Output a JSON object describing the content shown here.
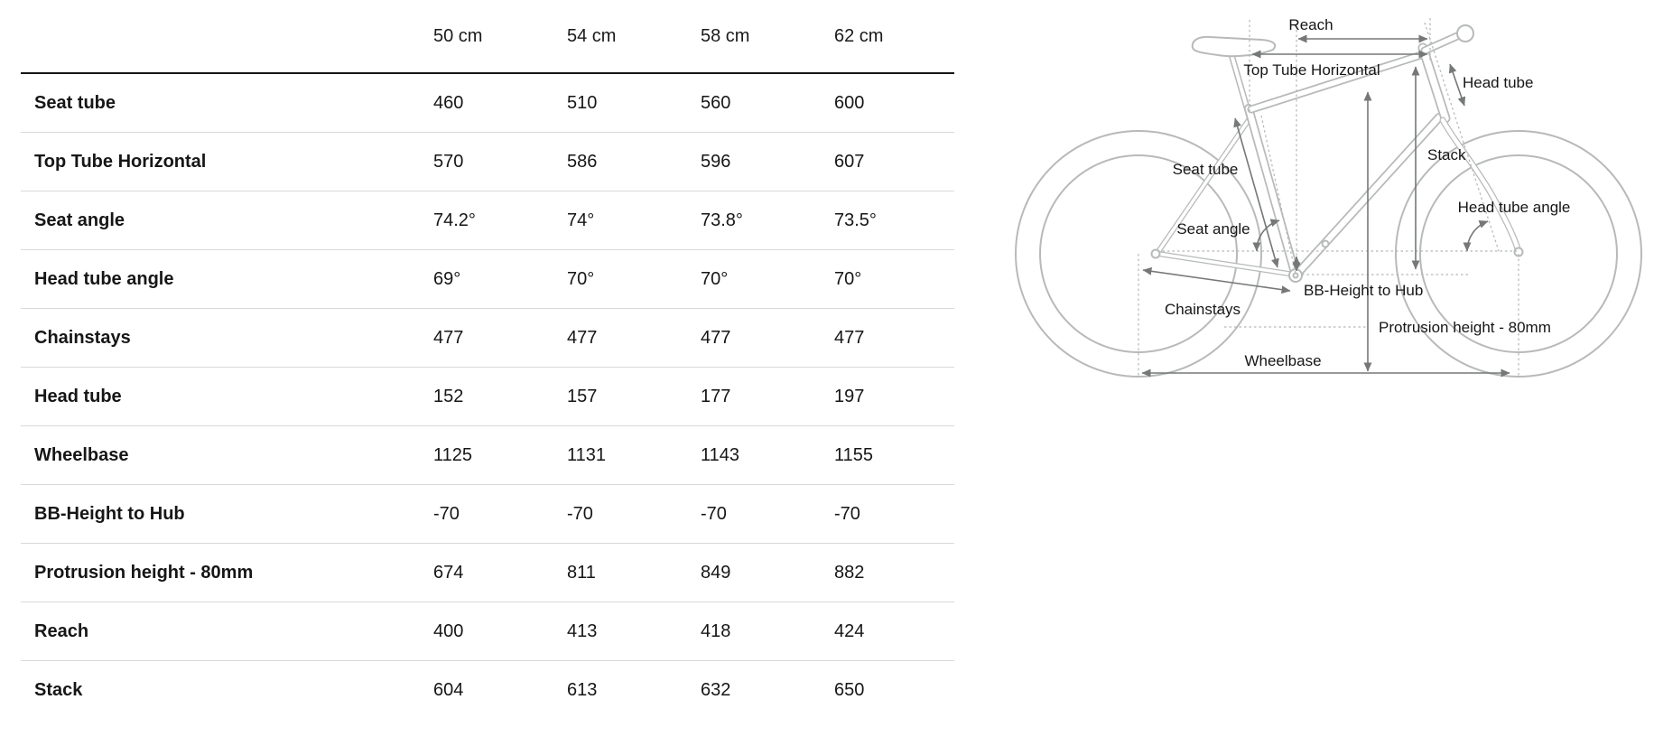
{
  "table": {
    "header": [
      "",
      "50 cm",
      "54 cm",
      "58 cm",
      "62 cm"
    ],
    "rows": [
      {
        "label": "Seat tube",
        "values": [
          "460",
          "510",
          "560",
          "600"
        ]
      },
      {
        "label": "Top Tube Horizontal",
        "values": [
          "570",
          "586",
          "596",
          "607"
        ]
      },
      {
        "label": "Seat angle",
        "values": [
          "74.2°",
          "74°",
          "73.8°",
          "73.5°"
        ]
      },
      {
        "label": "Head tube angle",
        "values": [
          "69°",
          "70°",
          "70°",
          "70°"
        ]
      },
      {
        "label": "Chainstays",
        "values": [
          "477",
          "477",
          "477",
          "477"
        ]
      },
      {
        "label": "Head tube",
        "values": [
          "152",
          "157",
          "177",
          "197"
        ]
      },
      {
        "label": "Wheelbase",
        "values": [
          "1125",
          "1131",
          "1143",
          "1155"
        ]
      },
      {
        "label": "BB-Height to Hub",
        "values": [
          "-70",
          "-70",
          "-70",
          "-70"
        ]
      },
      {
        "label": "Protrusion height - 80mm",
        "values": [
          "674",
          "811",
          "849",
          "882"
        ]
      },
      {
        "label": "Reach",
        "values": [
          "400",
          "413",
          "418",
          "424"
        ]
      },
      {
        "label": "Stack",
        "values": [
          "604",
          "613",
          "632",
          "650"
        ]
      }
    ]
  },
  "diagram": {
    "labels": {
      "reach": "Reach",
      "top_tube_horizontal": "Top Tube Horizontal",
      "head_tube": "Head tube",
      "seat_tube": "Seat tube",
      "stack": "Stack",
      "head_tube_angle": "Head tube angle",
      "seat_angle": "Seat angle",
      "bb_height_to_hub": "BB-Height to Hub",
      "chainstays": "Chainstays",
      "protrusion_height": "Protrusion height - 80mm",
      "wheelbase": "Wheelbase"
    },
    "colors": {
      "frame_outline": "#b7bab9",
      "dimension_arrows": "#757877",
      "construction_dotted": "#b3b6b5",
      "text": "#161616"
    }
  },
  "table_style": {
    "header_rule": "#151515",
    "row_divider": "#d9d9d9"
  }
}
